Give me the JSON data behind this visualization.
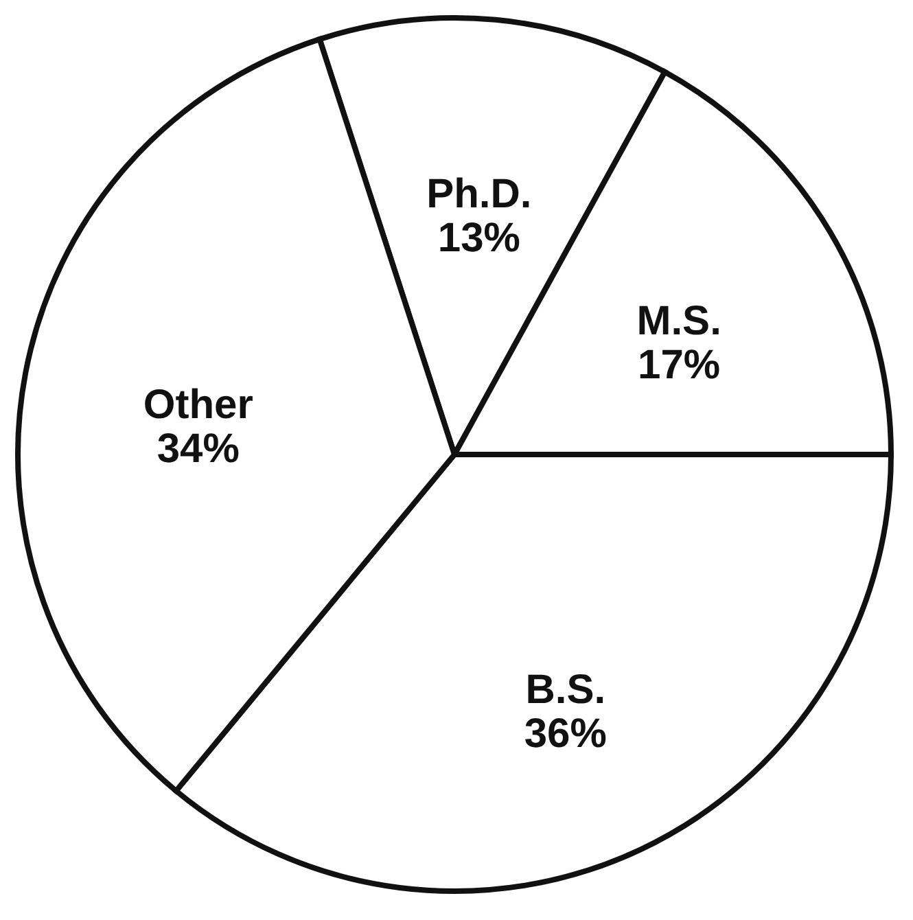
{
  "chart_data": {
    "type": "pie",
    "categories": [
      "Ph.D.",
      "M.S.",
      "B.S.",
      "Other"
    ],
    "values": [
      13,
      17,
      36,
      34
    ],
    "value_labels": [
      "13%",
      "17%",
      "36%",
      "34%"
    ],
    "colors": [
      "#ffffff",
      "#ffffff",
      "#ffffff",
      "#ffffff"
    ],
    "legend": false
  }
}
